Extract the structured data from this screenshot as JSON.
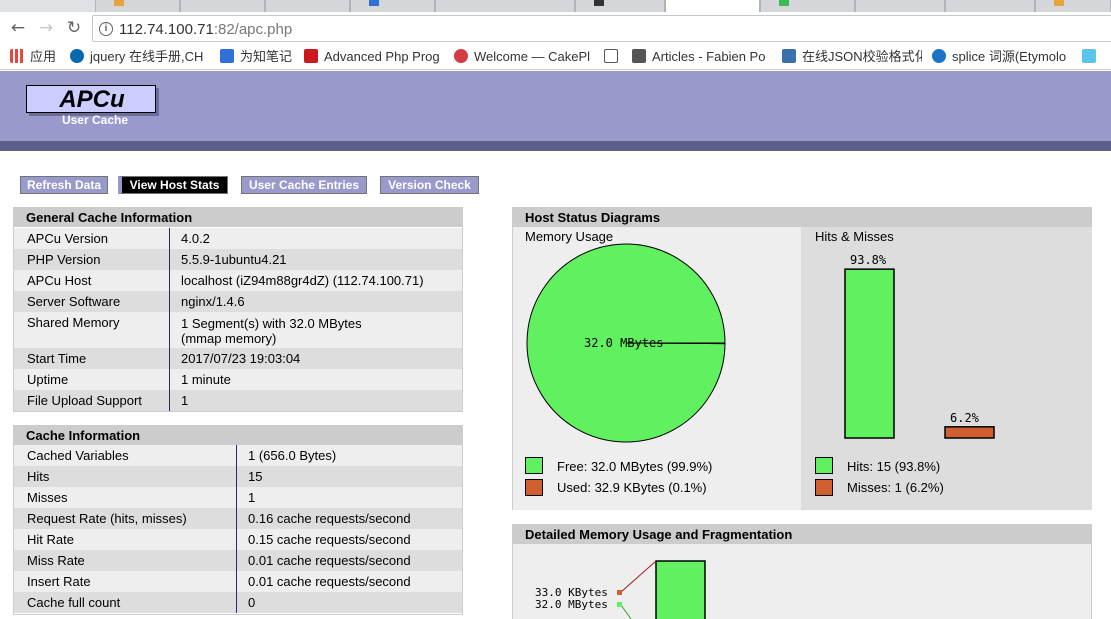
{
  "browser": {
    "url_host": "112.74.100.71",
    "url_rest": ":82/apc.php",
    "bookmarks": [
      {
        "label": "应用",
        "icon": "apps-grid-icon",
        "color": "#e8453c"
      },
      {
        "label": "jquery 在线手册,CH",
        "icon": "jquery-icon",
        "color": "#0769ad"
      },
      {
        "label": "为知笔记",
        "icon": "wiznote-icon",
        "color": "#2f6fd6"
      },
      {
        "label": "Advanced Php Prog",
        "icon": "youtube-icon",
        "color": "#cc181e"
      },
      {
        "label": "Welcome — CakePl",
        "icon": "cakephp-icon",
        "color": "#d33c43"
      },
      {
        "label": "",
        "icon": "page-icon",
        "color": "#ffffff"
      },
      {
        "label": "Articles - Fabien Po",
        "icon": "fabien-icon",
        "color": "#555555"
      },
      {
        "label": "在线JSON校验格式化",
        "icon": "json-icon",
        "color": "#3a6fb0"
      },
      {
        "label": "splice 词源(Etymolo",
        "icon": "etymology-icon",
        "color": "#1b74c5"
      },
      {
        "label": "",
        "icon": "d-icon",
        "color": "#5bc4ea"
      }
    ]
  },
  "header": {
    "logo": "APCu",
    "subtitle": "User Cache"
  },
  "menu": [
    {
      "label": "Refresh Data",
      "active": false
    },
    {
      "label": "View Host Stats",
      "active": true
    },
    {
      "label": "User Cache Entries",
      "active": false
    },
    {
      "label": "Version Check",
      "active": false
    }
  ],
  "general": {
    "title": "General Cache Information",
    "rows": [
      {
        "k": "APCu Version",
        "v": "4.0.2"
      },
      {
        "k": "PHP Version",
        "v": "5.5.9-1ubuntu4.21"
      },
      {
        "k": "APCu Host",
        "v": "localhost (iZ94m88gr4dZ) (112.74.100.71)"
      },
      {
        "k": "Server Software",
        "v": "nginx/1.4.6"
      },
      {
        "k": "Shared Memory",
        "v": "1 Segment(s) with 32.0 MBytes",
        "v2": "(mmap memory)"
      },
      {
        "k": "Start Time",
        "v": "2017/07/23 19:03:04"
      },
      {
        "k": "Uptime",
        "v": "1 minute"
      },
      {
        "k": "File Upload Support",
        "v": "1"
      }
    ]
  },
  "cache": {
    "title": "Cache Information",
    "rows": [
      {
        "k": "Cached Variables",
        "v": "1 (656.0 Bytes)"
      },
      {
        "k": "Hits",
        "v": "15"
      },
      {
        "k": "Misses",
        "v": "1"
      },
      {
        "k": "Request Rate (hits, misses)",
        "v": "0.16 cache requests/second"
      },
      {
        "k": "Hit Rate",
        "v": "0.15 cache requests/second"
      },
      {
        "k": "Miss Rate",
        "v": "0.01 cache requests/second"
      },
      {
        "k": "Insert Rate",
        "v": "0.01 cache requests/second"
      },
      {
        "k": "Cache full count",
        "v": "0"
      }
    ]
  },
  "host": {
    "title": "Host Status Diagrams",
    "memory_title": "Memory Usage",
    "hits_title": "Hits & Misses",
    "pie_label": "32.0 MBytes",
    "free_legend": "Free: 32.0 MBytes (99.9%)",
    "used_legend": "Used: 32.9 KBytes (0.1%)",
    "hits_legend": "Hits: 15 (93.8%)",
    "misses_legend": "Misses: 1 (6.2%)",
    "hits_pct_label": "93.8%",
    "misses_pct_label": "6.2%"
  },
  "detail": {
    "title": "Detailed Memory Usage and Fragmentation",
    "label1": "33.0 KBytes",
    "label2": "32.0 MBytes"
  },
  "colors": {
    "free": "#60f060",
    "used": "#d06030",
    "header": "#9999cc",
    "menu": "#9999cc"
  },
  "chart_data": [
    {
      "type": "pie",
      "title": "Memory Usage",
      "categories": [
        "Free",
        "Used"
      ],
      "values": [
        99.9,
        0.1
      ]
    },
    {
      "type": "bar",
      "title": "Hits & Misses",
      "categories": [
        "Hits",
        "Misses"
      ],
      "values": [
        93.8,
        6.2
      ]
    }
  ]
}
